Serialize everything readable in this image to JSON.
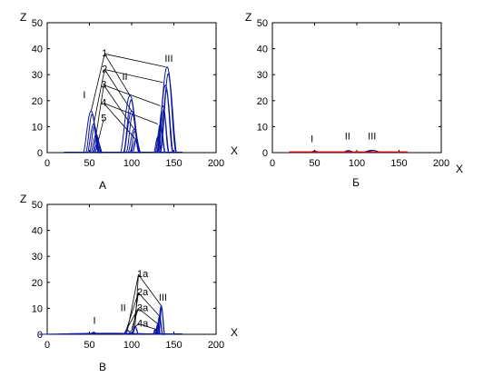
{
  "chart_data": [
    {
      "id": "A",
      "type": "line",
      "caption": "А",
      "xlabel": "X",
      "ylabel": "Z",
      "xlim": [
        0,
        200
      ],
      "ylim": [
        0,
        50
      ],
      "xticks": [
        0,
        50,
        100,
        150,
        200
      ],
      "yticks": [
        0,
        10,
        20,
        30,
        40,
        50
      ],
      "curve_color": "#0a14a0",
      "peaks": [
        {
          "group": "I",
          "center": 52,
          "width": 18,
          "height": 16
        },
        {
          "group": "I",
          "center": 55,
          "width": 14,
          "height": 11
        },
        {
          "group": "I",
          "center": 58,
          "width": 12,
          "height": 7
        },
        {
          "group": "I",
          "center": 60,
          "width": 10,
          "height": 4
        },
        {
          "group": "II",
          "center": 98,
          "width": 22,
          "height": 22
        },
        {
          "group": "II",
          "center": 100,
          "width": 18,
          "height": 16
        },
        {
          "group": "II",
          "center": 103,
          "width": 14,
          "height": 9
        },
        {
          "group": "II",
          "center": 105,
          "width": 11,
          "height": 5
        },
        {
          "group": "III",
          "center": 142,
          "width": 22,
          "height": 33
        },
        {
          "group": "III",
          "center": 140,
          "width": 18,
          "height": 26
        },
        {
          "group": "III",
          "center": 137,
          "width": 14,
          "height": 18
        },
        {
          "group": "III",
          "center": 134,
          "width": 11,
          "height": 11
        },
        {
          "group": "III",
          "center": 131,
          "width": 9,
          "height": 6
        }
      ],
      "labels": [
        {
          "text": "1",
          "x": 68,
          "z": 37
        },
        {
          "text": "2",
          "x": 68,
          "z": 31
        },
        {
          "text": "3",
          "x": 67,
          "z": 25
        },
        {
          "text": "4",
          "x": 67,
          "z": 18
        },
        {
          "text": "5",
          "x": 67,
          "z": 12
        },
        {
          "text": "I",
          "x": 44,
          "z": 21
        },
        {
          "text": "II",
          "x": 92,
          "z": 28
        },
        {
          "text": "III",
          "x": 144,
          "z": 35
        }
      ],
      "leaders": [
        {
          "from": [
            68,
            38
          ],
          "to": [
            140,
            33
          ]
        },
        {
          "from": [
            68,
            38
          ],
          "to": [
            98,
            22
          ]
        },
        {
          "from": [
            68,
            38
          ],
          "to": [
            52,
            16
          ]
        },
        {
          "from": [
            68,
            32
          ],
          "to": [
            137,
            27
          ]
        },
        {
          "from": [
            68,
            32
          ],
          "to": [
            100,
            16
          ]
        },
        {
          "from": [
            68,
            32
          ],
          "to": [
            55,
            11
          ]
        },
        {
          "from": [
            67,
            26
          ],
          "to": [
            134,
            18
          ]
        },
        {
          "from": [
            67,
            26
          ],
          "to": [
            103,
            9
          ]
        },
        {
          "from": [
            67,
            26
          ],
          "to": [
            58,
            7
          ]
        },
        {
          "from": [
            67,
            19
          ],
          "to": [
            131,
            11
          ]
        },
        {
          "from": [
            67,
            19
          ],
          "to": [
            105,
            5
          ]
        },
        {
          "from": [
            67,
            13
          ],
          "to": [
            60,
            4
          ]
        }
      ]
    },
    {
      "id": "B",
      "type": "line",
      "caption": "Б",
      "xlabel": "X",
      "ylabel": "Z",
      "xlim": [
        0,
        200
      ],
      "ylim": [
        0,
        50
      ],
      "xticks": [
        0,
        50,
        100,
        150,
        200
      ],
      "yticks": [
        0,
        10,
        20,
        30,
        40,
        50
      ],
      "curve_color": "#c00000",
      "peaks": [
        {
          "group": "I",
          "center": 50,
          "width": 12,
          "height": 0.6
        },
        {
          "group": "II",
          "center": 90,
          "width": 14,
          "height": 0.8
        },
        {
          "group": "III",
          "center": 118,
          "width": 24,
          "height": 0.9
        }
      ],
      "labels": [
        {
          "text": "I",
          "x": 47,
          "z": 4
        },
        {
          "text": "II",
          "x": 89,
          "z": 5
        },
        {
          "text": "III",
          "x": 118,
          "z": 5
        }
      ],
      "leaders": []
    },
    {
      "id": "V",
      "type": "line",
      "caption": "В",
      "xlabel": "X",
      "ylabel": "Z",
      "xlim": [
        0,
        200
      ],
      "ylim": [
        0,
        50
      ],
      "xticks": [
        0,
        50,
        100,
        150,
        200
      ],
      "yticks": [
        0,
        10,
        20,
        30,
        40,
        50
      ],
      "curve_color": "#0a14a0",
      "peaks": [
        {
          "group": "I",
          "center": 55,
          "width": 8,
          "height": 0.8
        },
        {
          "group": "II",
          "center": 95,
          "width": 10,
          "height": 1.5
        },
        {
          "group": "II",
          "center": 104,
          "width": 8,
          "height": 3
        },
        {
          "group": "III",
          "center": 135,
          "width": 8,
          "height": 11
        },
        {
          "group": "III",
          "center": 133,
          "width": 7,
          "height": 7
        },
        {
          "group": "III",
          "center": 131,
          "width": 6,
          "height": 4
        },
        {
          "group": "III",
          "center": 128,
          "width": 5,
          "height": 2
        },
        {
          "group": "base",
          "center": 70,
          "width": 160,
          "height": 0.4
        }
      ],
      "labels": [
        {
          "text": "1a",
          "x": 113,
          "z": 22
        },
        {
          "text": "2a",
          "x": 113,
          "z": 15
        },
        {
          "text": "3a",
          "x": 113,
          "z": 9
        },
        {
          "text": "4a",
          "x": 113,
          "z": 3
        },
        {
          "text": "I",
          "x": 56,
          "z": 4
        },
        {
          "text": "II",
          "x": 90,
          "z": 9
        },
        {
          "text": "III",
          "x": 137,
          "z": 13
        }
      ],
      "leaders": [
        {
          "from": [
            108,
            23
          ],
          "to": [
            135,
            11
          ]
        },
        {
          "from": [
            108,
            23
          ],
          "to": [
            104,
            3
          ]
        },
        {
          "from": [
            108,
            23
          ],
          "to": [
            95,
            1.5
          ]
        },
        {
          "from": [
            108,
            16
          ],
          "to": [
            133,
            7
          ]
        },
        {
          "from": [
            108,
            16
          ],
          "to": [
            102,
            2.5
          ]
        },
        {
          "from": [
            108,
            16
          ],
          "to": [
            93,
            1
          ]
        },
        {
          "from": [
            108,
            10
          ],
          "to": [
            131,
            4
          ]
        },
        {
          "from": [
            108,
            10
          ],
          "to": [
            100,
            2
          ]
        },
        {
          "from": [
            108,
            10
          ],
          "to": [
            92,
            0.8
          ]
        },
        {
          "from": [
            108,
            4
          ],
          "to": [
            128,
            2
          ]
        },
        {
          "from": [
            108,
            4
          ],
          "to": [
            98,
            1
          ]
        }
      ]
    }
  ]
}
